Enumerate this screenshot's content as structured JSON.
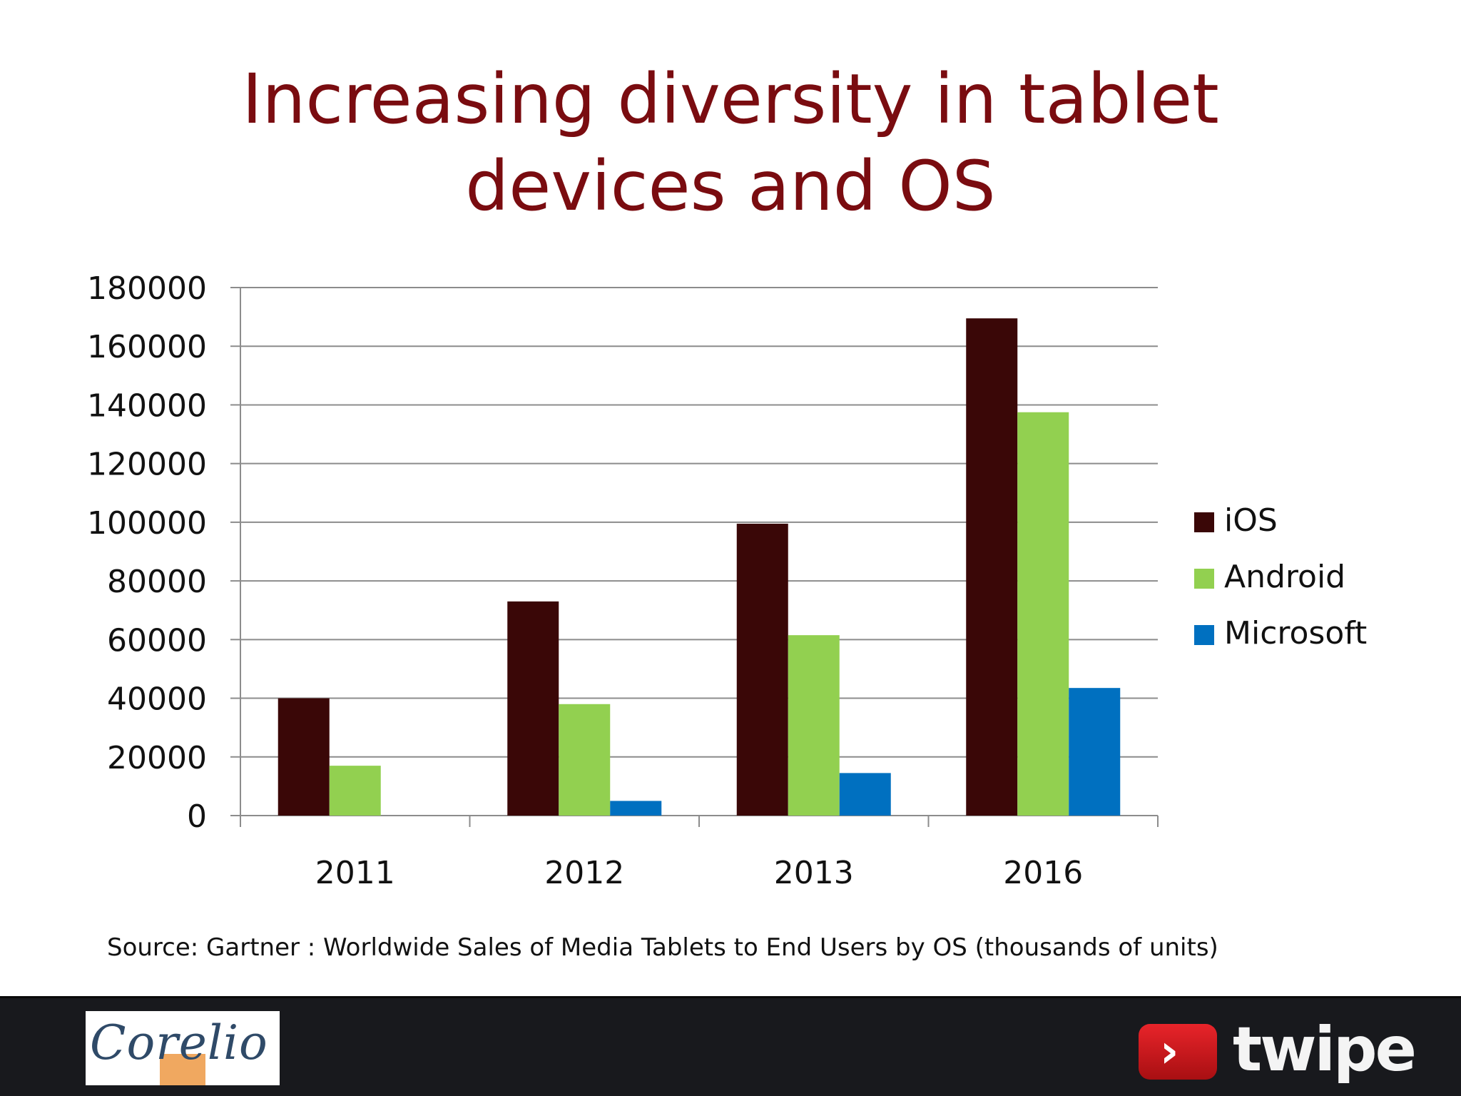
{
  "slide": {
    "title_line1": "Increasing diversity in tablet",
    "title_line2": "devices and OS",
    "source": "Source: Gartner : Worldwide Sales of Media Tablets to End Users by OS (thousands of units)"
  },
  "footer": {
    "left_logo_text": "Corelio",
    "right_logo_text": "twipe",
    "right_logo_mark": "›"
  },
  "colors": {
    "title": "#7a0c10",
    "ios": "#3a0707",
    "android": "#92d050",
    "microsoft": "#0070c0",
    "footer": "#18191d"
  },
  "chart_data": {
    "type": "bar",
    "categories": [
      "2011",
      "2012",
      "2013",
      "2016"
    ],
    "series": [
      {
        "name": "iOS",
        "values": [
          40000,
          73000,
          99500,
          169500
        ],
        "color": "#3a0707"
      },
      {
        "name": "Android",
        "values": [
          17000,
          38000,
          61500,
          137500
        ],
        "color": "#92d050"
      },
      {
        "name": "Microsoft",
        "values": [
          0,
          5000,
          14500,
          43500
        ],
        "color": "#0070c0"
      }
    ],
    "ylim": [
      0,
      180000
    ],
    "yticks": [
      0,
      20000,
      40000,
      60000,
      80000,
      100000,
      120000,
      140000,
      160000,
      180000
    ],
    "grid": true,
    "legend": "right"
  }
}
